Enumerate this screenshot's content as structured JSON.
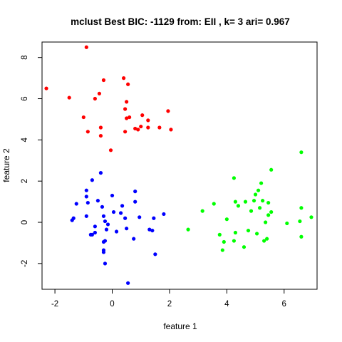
{
  "chart_data": {
    "type": "scatter",
    "title": "mclust Best BIC: -1129 from: EII , k= 3 ari= 0.967",
    "xlabel": "feature 1",
    "ylabel": "feature 2",
    "xlim": [
      -2.45,
      7.15
    ],
    "ylim": [
      -3.25,
      8.75
    ],
    "xticks": [
      -2,
      0,
      2,
      4,
      6
    ],
    "yticks": [
      -2,
      0,
      2,
      4,
      6,
      8
    ],
    "grid": false,
    "legend": "none",
    "series": [
      {
        "color": "#ff0000",
        "points": [
          [
            -2.3,
            6.5
          ],
          [
            -1.5,
            6.05
          ],
          [
            -0.9,
            8.5
          ],
          [
            -1.0,
            5.1
          ],
          [
            -0.85,
            4.4
          ],
          [
            -0.6,
            6.0
          ],
          [
            -0.45,
            6.25
          ],
          [
            -0.3,
            6.9
          ],
          [
            -0.4,
            4.6
          ],
          [
            -0.4,
            4.2
          ],
          [
            -0.05,
            3.5
          ],
          [
            0.4,
            7.0
          ],
          [
            0.55,
            6.7
          ],
          [
            0.5,
            5.85
          ],
          [
            0.45,
            5.5
          ],
          [
            0.6,
            5.1
          ],
          [
            0.5,
            5.05
          ],
          [
            0.45,
            4.4
          ],
          [
            0.8,
            4.55
          ],
          [
            0.9,
            4.5
          ],
          [
            1.0,
            4.65
          ],
          [
            1.05,
            5.2
          ],
          [
            1.25,
            4.6
          ],
          [
            1.25,
            4.95
          ],
          [
            1.65,
            4.6
          ],
          [
            1.95,
            5.4
          ],
          [
            2.05,
            4.5
          ]
        ]
      },
      {
        "color": "#0000ff",
        "points": [
          [
            -1.4,
            0.1
          ],
          [
            -1.35,
            0.2
          ],
          [
            -1.25,
            0.9
          ],
          [
            -0.9,
            1.55
          ],
          [
            -0.9,
            1.25
          ],
          [
            -0.85,
            0.95
          ],
          [
            -0.9,
            0.3
          ],
          [
            -0.7,
            -0.6
          ],
          [
            -0.75,
            -0.6
          ],
          [
            -0.6,
            -0.5
          ],
          [
            -0.6,
            -0.2
          ],
          [
            -0.7,
            2.05
          ],
          [
            -0.5,
            1.05
          ],
          [
            -0.4,
            2.4
          ],
          [
            -0.35,
            0.75
          ],
          [
            -0.3,
            0.3
          ],
          [
            -0.25,
            0.05
          ],
          [
            -0.15,
            -0.1
          ],
          [
            -0.2,
            -0.35
          ],
          [
            -0.3,
            -0.95
          ],
          [
            -0.25,
            -0.9
          ],
          [
            -0.3,
            -1.35
          ],
          [
            -0.3,
            -1.45
          ],
          [
            -0.25,
            -2.0
          ],
          [
            0.0,
            1.3
          ],
          [
            0.05,
            0.5
          ],
          [
            0.15,
            -0.45
          ],
          [
            0.3,
            0.45
          ],
          [
            0.35,
            0.8
          ],
          [
            0.45,
            0.2
          ],
          [
            0.5,
            -0.3
          ],
          [
            0.55,
            -2.95
          ],
          [
            0.8,
            1.5
          ],
          [
            0.8,
            1.0
          ],
          [
            0.75,
            -0.8
          ],
          [
            0.95,
            0.25
          ],
          [
            1.3,
            -0.35
          ],
          [
            1.4,
            -0.4
          ],
          [
            1.45,
            0.2
          ],
          [
            1.5,
            -1.55
          ],
          [
            1.8,
            0.4
          ]
        ]
      },
      {
        "color": "#00ff00",
        "points": [
          [
            2.65,
            -0.35
          ],
          [
            3.15,
            0.55
          ],
          [
            3.55,
            0.9
          ],
          [
            3.75,
            -0.6
          ],
          [
            3.85,
            -1.35
          ],
          [
            3.9,
            -0.95
          ],
          [
            4.0,
            0.15
          ],
          [
            4.25,
            2.15
          ],
          [
            4.3,
            1.0
          ],
          [
            4.4,
            0.8
          ],
          [
            4.3,
            -0.5
          ],
          [
            4.25,
            -0.9
          ],
          [
            4.65,
            1.0
          ],
          [
            4.6,
            -1.2
          ],
          [
            4.75,
            -0.4
          ],
          [
            4.85,
            0.55
          ],
          [
            5.0,
            1.35
          ],
          [
            5.05,
            -0.55
          ],
          [
            5.1,
            1.55
          ],
          [
            5.2,
            1.9
          ],
          [
            5.25,
            1.05
          ],
          [
            5.3,
            -0.9
          ],
          [
            5.35,
            0.0
          ],
          [
            5.4,
            -0.8
          ],
          [
            5.45,
            0.95
          ],
          [
            5.45,
            0.35
          ],
          [
            5.55,
            0.5
          ],
          [
            5.55,
            2.55
          ],
          [
            6.1,
            -0.05
          ],
          [
            6.55,
            0.05
          ],
          [
            6.6,
            3.4
          ],
          [
            6.6,
            0.7
          ],
          [
            6.6,
            -0.7
          ],
          [
            6.95,
            0.25
          ],
          [
            5.15,
            0.7
          ],
          [
            4.95,
            1.05
          ]
        ]
      }
    ]
  }
}
